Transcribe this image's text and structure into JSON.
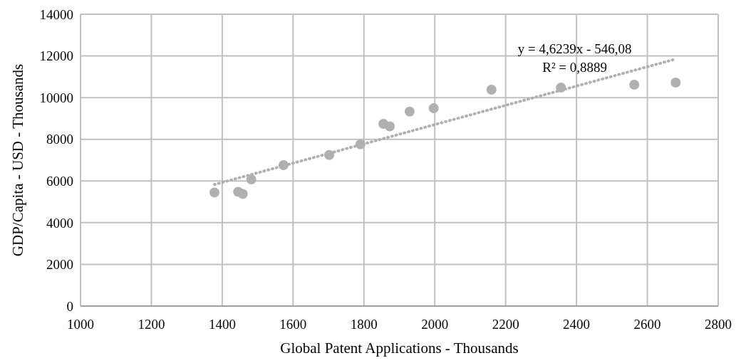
{
  "chart_data": {
    "type": "scatter",
    "xlabel": "Global Patent Applications  - Thousands",
    "ylabel": "GDP/Capita - USD - Thousands",
    "xlim": [
      1000,
      2800
    ],
    "xticks": [
      1000,
      1200,
      1400,
      1600,
      1800,
      2000,
      2200,
      2400,
      2600,
      2800
    ],
    "ylim": [
      0,
      14000
    ],
    "yticks": [
      0,
      2000,
      4000,
      6000,
      8000,
      10000,
      12000,
      14000
    ],
    "grid": true,
    "marker": "circle",
    "annotations": [
      "y = 4,6239x - 546,08",
      "R² = 0,8889"
    ],
    "series": [
      {
        "color": "#b0b0b0",
        "x": [
          1378,
          1445,
          1458,
          1482,
          1573,
          1702,
          1790,
          1855,
          1873,
          1929,
          1997,
          2160,
          2356,
          2563,
          2680
        ],
        "values": [
          5450,
          5480,
          5380,
          6080,
          6760,
          7250,
          7760,
          8740,
          8620,
          9330,
          9490,
          10380,
          10480,
          10620,
          10720
        ]
      },
      {
        "type": "line",
        "color": "#b0b0b0",
        "line_style": "dotted",
        "marker": "none",
        "x": [
          1378,
          2680
        ],
        "values": [
          5830,
          11850
        ]
      }
    ]
  }
}
